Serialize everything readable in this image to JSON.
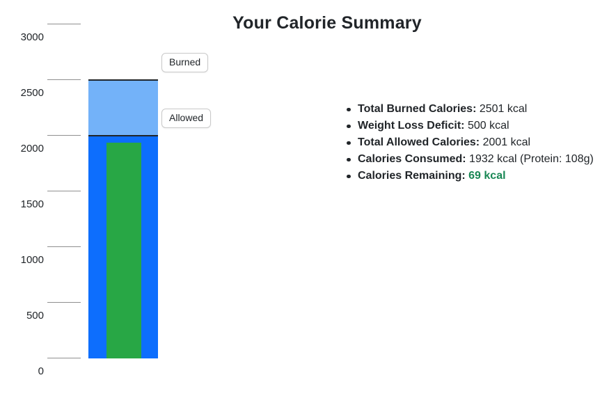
{
  "title": "Your Calorie Summary",
  "chart_data": {
    "type": "bar",
    "title": "",
    "xlabel": "",
    "ylabel": "",
    "ylim": [
      0,
      3000
    ],
    "yticks": [
      0,
      500,
      1000,
      1500,
      2000,
      2500,
      3000
    ],
    "grid": false,
    "legend_position": "right-of-bar",
    "series": [
      {
        "name": "Burned",
        "value": 2501,
        "color": "#73b2f9",
        "legend_label": "Burned"
      },
      {
        "name": "Allowed",
        "value": 2001,
        "color": "#0d6efd",
        "legend_label": "Allowed"
      },
      {
        "name": "Consumed",
        "value": 1932,
        "color": "#28a745",
        "inset": true
      }
    ],
    "colors": {
      "bar_border": "#212529",
      "tick": "#8f8f8f",
      "text": "#212529"
    }
  },
  "summary": {
    "items": [
      {
        "label": "Total Burned Calories:",
        "value": "2501 kcal"
      },
      {
        "label": "Weight Loss Deficit:",
        "value": "500 kcal"
      },
      {
        "label": "Total Allowed Calories:",
        "value": "2001 kcal"
      },
      {
        "label": "Calories Consumed:",
        "value": "1932 kcal (Protein: 108g)"
      },
      {
        "label": "Calories Remaining:",
        "value": "69 kcal",
        "value_color": "#198754",
        "value_bold": true
      }
    ]
  }
}
